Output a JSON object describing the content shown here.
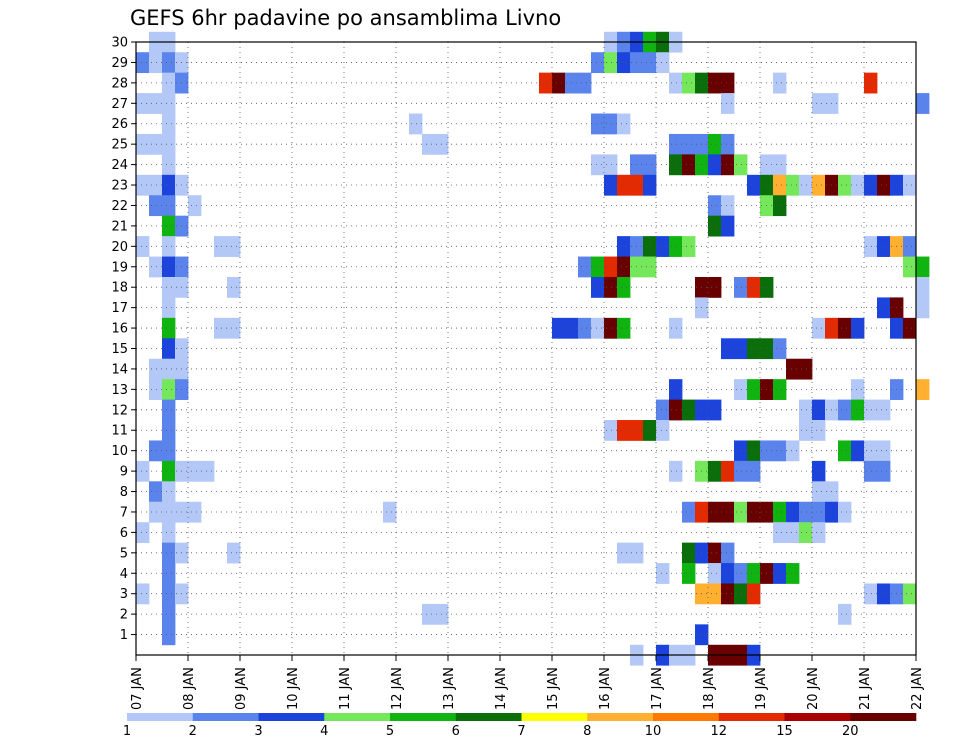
{
  "chart_data": {
    "type": "heatmap",
    "title": "GEFS 6hr padavine po ansamblima Livno",
    "xlabel": "",
    "ylabel": "",
    "x_tick_labels": [
      "07 JAN",
      "08 JAN",
      "09 JAN",
      "10 JAN",
      "11 JAN",
      "12 JAN",
      "13 JAN",
      "14 JAN",
      "15 JAN",
      "16 JAN",
      "17 JAN",
      "18 JAN",
      "19 JAN",
      "20 JAN",
      "21 JAN",
      "22 JAN"
    ],
    "y_tick_labels": [
      "1",
      "2",
      "3",
      "4",
      "5",
      "6",
      "7",
      "8",
      "9",
      "10",
      "11",
      "12",
      "13",
      "14",
      "15",
      "16",
      "17",
      "18",
      "19",
      "20",
      "21",
      "22",
      "23",
      "24",
      "25",
      "26",
      "27",
      "28",
      "29",
      "30"
    ],
    "x_range_days": [
      0,
      15
    ],
    "y_range": [
      0,
      30
    ],
    "grid": "dotted",
    "colorbar": {
      "levels": [
        "1",
        "2",
        "3",
        "4",
        "5",
        "6",
        "7",
        "8",
        "10",
        "12",
        "15",
        "20"
      ],
      "colors": [
        "#b4c8f8",
        "#5a84ec",
        "#1c44dc",
        "#74e85a",
        "#10b410",
        "#0a6e0a",
        "#ffff00",
        "#ffb030",
        "#ff7a00",
        "#e42a00",
        "#a80000",
        "#680000"
      ]
    },
    "cells": [
      [
        0.25,
        30,
        1
      ],
      [
        0.5,
        30,
        1
      ],
      [
        9.0,
        30,
        1
      ],
      [
        9.25,
        30,
        2
      ],
      [
        9.5,
        30,
        3
      ],
      [
        9.75,
        30,
        5
      ],
      [
        10.0,
        30,
        6
      ],
      [
        10.25,
        30,
        1
      ],
      [
        0.0,
        29,
        2
      ],
      [
        0.25,
        29,
        1
      ],
      [
        0.5,
        29,
        2
      ],
      [
        0.75,
        29,
        1
      ],
      [
        8.75,
        29,
        2
      ],
      [
        9.0,
        29,
        4
      ],
      [
        9.25,
        29,
        3
      ],
      [
        9.5,
        29,
        2
      ],
      [
        9.75,
        29,
        2
      ],
      [
        10.0,
        29,
        1
      ],
      [
        0.5,
        28,
        1
      ],
      [
        0.75,
        28,
        2
      ],
      [
        7.75,
        28,
        10
      ],
      [
        8.0,
        28,
        12
      ],
      [
        8.25,
        28,
        2
      ],
      [
        8.5,
        28,
        2
      ],
      [
        10.25,
        28,
        1
      ],
      [
        10.5,
        28,
        4
      ],
      [
        10.75,
        28,
        6
      ],
      [
        11.0,
        28,
        20
      ],
      [
        11.25,
        28,
        20
      ],
      [
        12.25,
        28,
        1
      ],
      [
        14.0,
        28,
        10
      ],
      [
        0.0,
        27,
        1
      ],
      [
        0.25,
        27,
        1
      ],
      [
        0.5,
        27,
        1
      ],
      [
        11.25,
        27,
        1
      ],
      [
        13.0,
        27,
        1
      ],
      [
        13.25,
        27,
        1
      ],
      [
        15.0,
        27,
        2
      ],
      [
        0.5,
        26,
        1
      ],
      [
        5.25,
        26,
        1
      ],
      [
        8.75,
        26,
        2
      ],
      [
        9.0,
        26,
        2
      ],
      [
        9.25,
        26,
        1
      ],
      [
        0.0,
        25,
        1
      ],
      [
        0.25,
        25,
        1
      ],
      [
        0.5,
        25,
        1
      ],
      [
        5.5,
        25,
        1
      ],
      [
        5.75,
        25,
        1
      ],
      [
        10.25,
        25,
        2
      ],
      [
        10.5,
        25,
        2
      ],
      [
        10.75,
        25,
        2
      ],
      [
        11.0,
        25,
        5
      ],
      [
        11.25,
        25,
        2
      ],
      [
        0.5,
        24,
        1
      ],
      [
        8.75,
        24,
        1
      ],
      [
        9.0,
        24,
        1
      ],
      [
        9.5,
        24,
        2
      ],
      [
        9.75,
        24,
        2
      ],
      [
        10.25,
        24,
        6
      ],
      [
        10.5,
        24,
        15
      ],
      [
        10.75,
        24,
        5
      ],
      [
        11.0,
        24,
        3
      ],
      [
        11.25,
        24,
        15
      ],
      [
        11.5,
        24,
        4
      ],
      [
        12.0,
        24,
        1
      ],
      [
        12.25,
        24,
        1
      ],
      [
        0.0,
        23,
        1
      ],
      [
        0.25,
        23,
        1
      ],
      [
        0.5,
        23,
        3
      ],
      [
        0.75,
        23,
        1
      ],
      [
        9.0,
        23,
        3
      ],
      [
        9.25,
        23,
        10
      ],
      [
        9.5,
        23,
        10
      ],
      [
        9.75,
        23,
        3
      ],
      [
        11.75,
        23,
        3
      ],
      [
        12.0,
        23,
        6
      ],
      [
        12.25,
        23,
        8
      ],
      [
        12.5,
        23,
        4
      ],
      [
        12.75,
        23,
        1
      ],
      [
        13.0,
        23,
        8
      ],
      [
        13.25,
        23,
        20
      ],
      [
        13.5,
        23,
        4
      ],
      [
        13.75,
        23,
        1
      ],
      [
        14.0,
        23,
        3
      ],
      [
        14.25,
        23,
        20
      ],
      [
        14.5,
        23,
        3
      ],
      [
        14.75,
        23,
        1
      ],
      [
        0.25,
        22,
        2
      ],
      [
        0.5,
        22,
        2
      ],
      [
        1.0,
        22,
        1
      ],
      [
        11.0,
        22,
        2
      ],
      [
        11.25,
        22,
        1
      ],
      [
        12.0,
        22,
        4
      ],
      [
        12.25,
        22,
        6
      ],
      [
        0.5,
        21,
        5
      ],
      [
        0.75,
        21,
        2
      ],
      [
        11.0,
        21,
        6
      ],
      [
        11.25,
        21,
        3
      ],
      [
        0.0,
        20,
        1
      ],
      [
        0.5,
        20,
        1
      ],
      [
        1.5,
        20,
        1
      ],
      [
        1.75,
        20,
        1
      ],
      [
        9.25,
        20,
        3
      ],
      [
        9.5,
        20,
        2
      ],
      [
        9.75,
        20,
        6
      ],
      [
        10.0,
        20,
        3
      ],
      [
        10.25,
        20,
        5
      ],
      [
        10.5,
        20,
        4
      ],
      [
        14.0,
        20,
        1
      ],
      [
        14.25,
        20,
        3
      ],
      [
        14.5,
        20,
        8
      ],
      [
        14.75,
        20,
        2
      ],
      [
        0.25,
        19,
        1
      ],
      [
        0.5,
        19,
        3
      ],
      [
        0.75,
        19,
        2
      ],
      [
        8.5,
        19,
        2
      ],
      [
        8.75,
        19,
        5
      ],
      [
        9.0,
        19,
        10
      ],
      [
        9.25,
        19,
        15
      ],
      [
        9.5,
        19,
        4
      ],
      [
        9.75,
        19,
        4
      ],
      [
        14.75,
        19,
        4
      ],
      [
        15.0,
        19,
        5
      ],
      [
        0.5,
        18,
        1
      ],
      [
        0.75,
        18,
        1
      ],
      [
        1.75,
        18,
        1
      ],
      [
        8.75,
        18,
        3
      ],
      [
        9.0,
        18,
        20
      ],
      [
        9.25,
        18,
        5
      ],
      [
        10.75,
        18,
        15
      ],
      [
        11.0,
        18,
        15
      ],
      [
        11.5,
        18,
        2
      ],
      [
        11.75,
        18,
        10
      ],
      [
        12.0,
        18,
        6
      ],
      [
        15.0,
        18,
        1
      ],
      [
        0.5,
        17,
        1
      ],
      [
        10.75,
        17,
        1
      ],
      [
        14.25,
        17,
        3
      ],
      [
        14.5,
        17,
        15
      ],
      [
        15.0,
        17,
        1
      ],
      [
        0.5,
        16,
        5
      ],
      [
        1.5,
        16,
        1
      ],
      [
        1.75,
        16,
        1
      ],
      [
        8.0,
        16,
        3
      ],
      [
        8.25,
        16,
        3
      ],
      [
        8.5,
        16,
        2
      ],
      [
        8.75,
        16,
        1
      ],
      [
        9.0,
        16,
        12
      ],
      [
        9.25,
        16,
        5
      ],
      [
        10.25,
        16,
        1
      ],
      [
        13.0,
        16,
        1
      ],
      [
        13.25,
        16,
        10
      ],
      [
        13.5,
        16,
        12
      ],
      [
        13.75,
        16,
        3
      ],
      [
        14.5,
        16,
        3
      ],
      [
        14.75,
        16,
        15
      ],
      [
        0.5,
        15,
        3
      ],
      [
        0.75,
        15,
        1
      ],
      [
        11.25,
        15,
        3
      ],
      [
        11.5,
        15,
        3
      ],
      [
        11.75,
        15,
        6
      ],
      [
        12.0,
        15,
        6
      ],
      [
        12.25,
        15,
        2
      ],
      [
        0.25,
        14,
        1
      ],
      [
        0.5,
        14,
        1
      ],
      [
        0.75,
        14,
        1
      ],
      [
        12.5,
        14,
        20
      ],
      [
        12.75,
        14,
        15
      ],
      [
        0.25,
        13,
        1
      ],
      [
        0.5,
        13,
        4
      ],
      [
        0.75,
        13,
        2
      ],
      [
        10.25,
        13,
        3
      ],
      [
        11.5,
        13,
        1
      ],
      [
        11.75,
        13,
        5
      ],
      [
        12.0,
        13,
        12
      ],
      [
        12.25,
        13,
        5
      ],
      [
        13.75,
        13,
        1
      ],
      [
        14.5,
        13,
        2
      ],
      [
        15.0,
        13,
        8
      ],
      [
        0.5,
        12,
        2
      ],
      [
        10.0,
        12,
        2
      ],
      [
        10.25,
        12,
        15
      ],
      [
        10.5,
        12,
        6
      ],
      [
        10.75,
        12,
        3
      ],
      [
        11.0,
        12,
        3
      ],
      [
        12.75,
        12,
        1
      ],
      [
        13.0,
        12,
        3
      ],
      [
        13.25,
        12,
        1
      ],
      [
        13.5,
        12,
        2
      ],
      [
        13.75,
        12,
        5
      ],
      [
        14.0,
        12,
        1
      ],
      [
        14.25,
        12,
        1
      ],
      [
        0.5,
        11,
        2
      ],
      [
        9.0,
        11,
        1
      ],
      [
        9.25,
        11,
        10
      ],
      [
        9.5,
        11,
        10
      ],
      [
        9.75,
        11,
        6
      ],
      [
        10.0,
        11,
        1
      ],
      [
        12.75,
        11,
        1
      ],
      [
        13.0,
        11,
        1
      ],
      [
        0.25,
        10,
        2
      ],
      [
        0.5,
        10,
        2
      ],
      [
        11.5,
        10,
        3
      ],
      [
        11.75,
        10,
        6
      ],
      [
        12.0,
        10,
        2
      ],
      [
        12.25,
        10,
        2
      ],
      [
        12.5,
        10,
        1
      ],
      [
        13.5,
        10,
        5
      ],
      [
        13.75,
        10,
        3
      ],
      [
        14.0,
        10,
        1
      ],
      [
        14.25,
        10,
        1
      ],
      [
        0.0,
        9,
        1
      ],
      [
        0.5,
        9,
        5
      ],
      [
        0.75,
        9,
        1
      ],
      [
        1.0,
        9,
        1
      ],
      [
        1.25,
        9,
        1
      ],
      [
        10.25,
        9,
        1
      ],
      [
        10.75,
        9,
        4
      ],
      [
        11.0,
        9,
        6
      ],
      [
        11.25,
        9,
        10
      ],
      [
        11.5,
        9,
        2
      ],
      [
        11.75,
        9,
        2
      ],
      [
        13.0,
        9,
        3
      ],
      [
        14.0,
        9,
        2
      ],
      [
        14.25,
        9,
        2
      ],
      [
        0.25,
        8,
        2
      ],
      [
        0.5,
        8,
        1
      ],
      [
        13.0,
        8,
        1
      ],
      [
        13.25,
        8,
        1
      ],
      [
        0.25,
        7,
        1
      ],
      [
        0.5,
        7,
        1
      ],
      [
        0.75,
        7,
        1
      ],
      [
        1.0,
        7,
        1
      ],
      [
        4.75,
        7,
        1
      ],
      [
        10.5,
        7,
        2
      ],
      [
        10.75,
        7,
        10
      ],
      [
        11.0,
        7,
        12
      ],
      [
        11.25,
        7,
        15
      ],
      [
        11.5,
        7,
        4
      ],
      [
        11.75,
        7,
        20
      ],
      [
        12.0,
        7,
        20
      ],
      [
        12.25,
        7,
        5
      ],
      [
        12.5,
        7,
        3
      ],
      [
        12.75,
        7,
        2
      ],
      [
        13.0,
        7,
        2
      ],
      [
        13.25,
        7,
        3
      ],
      [
        13.5,
        7,
        1
      ],
      [
        0.0,
        6,
        1
      ],
      [
        0.5,
        6,
        1
      ],
      [
        12.25,
        6,
        1
      ],
      [
        12.5,
        6,
        1
      ],
      [
        12.75,
        6,
        4
      ],
      [
        13.0,
        6,
        1
      ],
      [
        0.5,
        5,
        2
      ],
      [
        0.75,
        5,
        1
      ],
      [
        1.75,
        5,
        1
      ],
      [
        9.25,
        5,
        1
      ],
      [
        9.5,
        5,
        1
      ],
      [
        10.5,
        5,
        6
      ],
      [
        10.75,
        5,
        3
      ],
      [
        11.0,
        5,
        20
      ],
      [
        11.25,
        5,
        2
      ],
      [
        0.5,
        4,
        2
      ],
      [
        10.0,
        4,
        1
      ],
      [
        10.5,
        4,
        5
      ],
      [
        11.0,
        4,
        1
      ],
      [
        11.25,
        4,
        3
      ],
      [
        11.5,
        4,
        2
      ],
      [
        11.75,
        4,
        5
      ],
      [
        12.0,
        4,
        15
      ],
      [
        12.25,
        4,
        3
      ],
      [
        12.5,
        4,
        5
      ],
      [
        0.0,
        3,
        1
      ],
      [
        0.5,
        3,
        2
      ],
      [
        0.75,
        3,
        1
      ],
      [
        10.75,
        3,
        8
      ],
      [
        11.0,
        3,
        8
      ],
      [
        11.25,
        3,
        12
      ],
      [
        11.5,
        3,
        6
      ],
      [
        11.75,
        3,
        10
      ],
      [
        14.0,
        3,
        1
      ],
      [
        14.25,
        3,
        3
      ],
      [
        14.5,
        3,
        2
      ],
      [
        14.75,
        3,
        4
      ],
      [
        0.5,
        2,
        2
      ],
      [
        5.5,
        2,
        1
      ],
      [
        5.75,
        2,
        1
      ],
      [
        13.5,
        2,
        1
      ],
      [
        0.5,
        1,
        2
      ],
      [
        10.75,
        1,
        3
      ],
      [
        9.5,
        0,
        1
      ],
      [
        10.0,
        0,
        3
      ],
      [
        10.25,
        0,
        1
      ],
      [
        10.5,
        0,
        1
      ],
      [
        11.0,
        0,
        20
      ],
      [
        11.25,
        0,
        20
      ],
      [
        11.5,
        0,
        12
      ],
      [
        11.75,
        0,
        3
      ]
    ]
  }
}
